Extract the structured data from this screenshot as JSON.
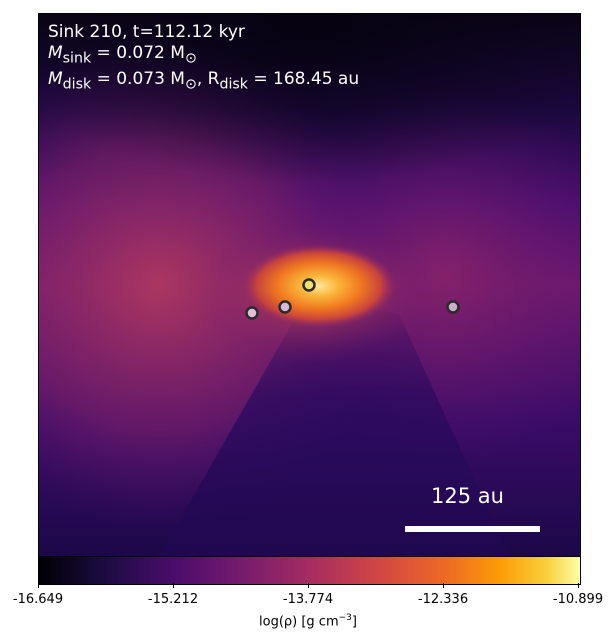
{
  "title_line1": "Sink 210, t=112.12 kyr",
  "title_line2_var": "M",
  "title_line2_sub": "sink",
  "title_line2_rest": " = 0.072 M",
  "title_line2_sun": "⊙",
  "title_line3_var": "M",
  "title_line3_sub": "disk",
  "title_line3_mid": " = 0.073 M",
  "title_line3_sun": "⊙",
  "title_line3_r": ", R",
  "title_line3_rsub": "disk",
  "title_line3_rval": " = 168.45 au",
  "scale_label": "125 au",
  "colorbar": {
    "ticks": [
      "-16.649",
      "-15.212",
      "-13.774",
      "-12.336",
      "-10.899"
    ],
    "label_prefix": "log(ρ) [g cm",
    "label_exp": "−3",
    "label_suffix": "]",
    "colormap": "inferno"
  },
  "sinks": [
    {
      "id": "sink-a",
      "fill": "#f0e070"
    },
    {
      "id": "sink-b",
      "fill": "#d8b8d8"
    },
    {
      "id": "sink-c",
      "fill": "#e0c0d8"
    },
    {
      "id": "sink-d",
      "fill": "#c8b0c8"
    }
  ]
}
